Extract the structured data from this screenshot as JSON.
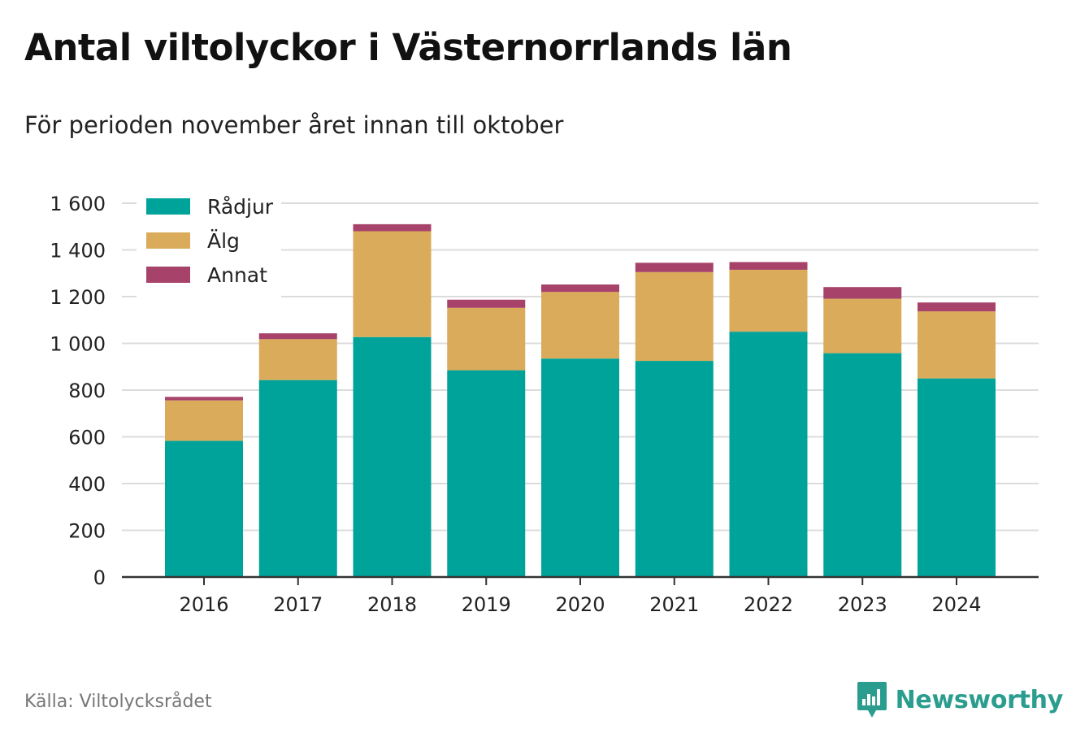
{
  "header": {
    "title": "Antal viltolyckor i Västernorrlands län",
    "subtitle": "För perioden november året innan till oktober"
  },
  "footer": {
    "source": "Källa: Viltolycksrådet",
    "brand": "Newsworthy",
    "brand_icon": "bar-chart-icon"
  },
  "colors": {
    "Rådjur": "#00a39a",
    "Älg": "#d9ab5a",
    "Annat": "#a7436a",
    "grid": "#dcdcdc",
    "axis": "#333333",
    "brand": "#2a9d8f"
  },
  "chart_data": {
    "type": "bar",
    "stacked": true,
    "categories": [
      "2016",
      "2017",
      "2018",
      "2019",
      "2020",
      "2021",
      "2022",
      "2023",
      "2024"
    ],
    "series": [
      {
        "name": "Rådjur",
        "values": [
          583,
          843,
          1027,
          885,
          935,
          925,
          1050,
          958,
          850
        ]
      },
      {
        "name": "Älg",
        "values": [
          173,
          175,
          453,
          267,
          285,
          380,
          265,
          233,
          287
        ]
      },
      {
        "name": "Annat",
        "values": [
          15,
          25,
          30,
          35,
          32,
          40,
          33,
          50,
          38
        ]
      }
    ],
    "ylim": [
      0,
      1600
    ],
    "yticks": [
      0,
      200,
      400,
      600,
      800,
      1000,
      1200,
      1400,
      1600
    ],
    "ytick_labels": [
      "0",
      "200",
      "400",
      "600",
      "800",
      "1 000",
      "1 200",
      "1 400",
      "1 600"
    ],
    "xlabel": "",
    "ylabel": "",
    "grid": true,
    "legend": "top-left"
  }
}
